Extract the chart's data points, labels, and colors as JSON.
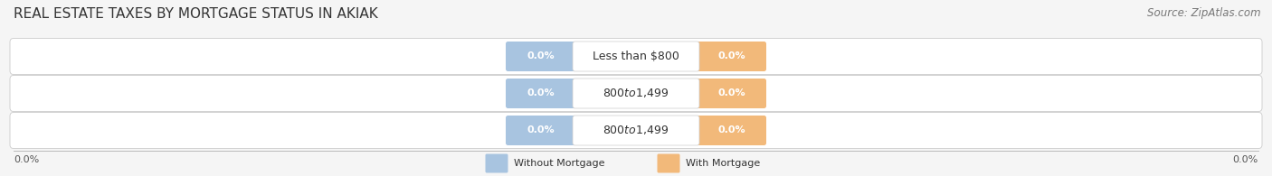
{
  "title": "REAL ESTATE TAXES BY MORTGAGE STATUS IN AKIAK",
  "source": "Source: ZipAtlas.com",
  "categories": [
    "Less than $800",
    "$800 to $1,499",
    "$800 to $1,499"
  ],
  "without_mortgage": [
    0.0,
    0.0,
    0.0
  ],
  "with_mortgage": [
    0.0,
    0.0,
    0.0
  ],
  "bar_color_without": "#a8c4e0",
  "bar_color_with": "#f2b97a",
  "bg_color": "#f5f5f5",
  "row_bg": "#ebebeb",
  "row_white": "#f8f8f8",
  "title_fontsize": 11,
  "source_fontsize": 8.5,
  "label_fontsize": 8,
  "cat_fontsize": 9,
  "legend_label_without": "Without Mortgage",
  "legend_label_with": "With Mortgage",
  "figsize": [
    14.06,
    1.95
  ],
  "dpi": 100
}
